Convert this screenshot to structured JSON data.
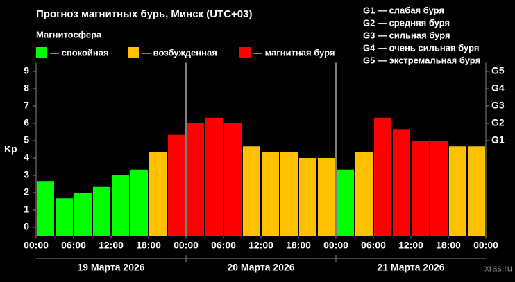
{
  "chart_data": {
    "type": "bar",
    "title": "Прогноз магнитных бурь, Минск (UTC+03)",
    "subtitle": "Магнитосфера",
    "legend": [
      {
        "name": "— спокойная",
        "color": "#00ff00"
      },
      {
        "name": "— возбужденная",
        "color": "#ffc000"
      },
      {
        "name": "— магнитная буря",
        "color": "#ff0000"
      }
    ],
    "storm_levels": [
      "G1 — слабая буря",
      "G2 — средняя буря",
      "G3 — сильная буря",
      "G4 — очень сильная буря",
      "G5 — экстремальная буря"
    ],
    "y_label": "Kp",
    "watermark": "xras.ru",
    "x": [
      0,
      3,
      6,
      9,
      12,
      15,
      18,
      21,
      24,
      27,
      30,
      33,
      36,
      39,
      42,
      45,
      48,
      51,
      54,
      57,
      60,
      63,
      66,
      69
    ],
    "values": [
      2.67,
      1.67,
      2.0,
      2.33,
      3.0,
      3.33,
      4.33,
      5.33,
      6.0,
      6.33,
      6.0,
      4.67,
      4.33,
      4.33,
      4.0,
      4.0,
      3.33,
      4.33,
      6.33,
      5.67,
      5.0,
      5.0,
      4.67,
      4.67
    ],
    "colors": [
      "#00ff00",
      "#00ff00",
      "#00ff00",
      "#00ff00",
      "#00ff00",
      "#00ff00",
      "#ffc000",
      "#ff0000",
      "#ff0000",
      "#ff0000",
      "#ff0000",
      "#ffc000",
      "#ffc000",
      "#ffc000",
      "#ffc000",
      "#ffc000",
      "#00ff00",
      "#ffc000",
      "#ff0000",
      "#ff0000",
      "#ff0000",
      "#ff0000",
      "#ffc000",
      "#ffc000"
    ],
    "xlim": [
      0,
      72
    ],
    "xticks": [
      {
        "value": 0,
        "label": "00:00"
      },
      {
        "value": 6,
        "label": "06:00"
      },
      {
        "value": 12,
        "label": "12:00"
      },
      {
        "value": 18,
        "label": "18:00"
      },
      {
        "value": 24,
        "label": "00:00"
      },
      {
        "value": 30,
        "label": "06:00"
      },
      {
        "value": 36,
        "label": "12:00"
      },
      {
        "value": 42,
        "label": "18:00"
      },
      {
        "value": 48,
        "label": "00:00"
      },
      {
        "value": 54,
        "label": "06:00"
      },
      {
        "value": 60,
        "label": "12:00"
      },
      {
        "value": 66,
        "label": "18:00"
      },
      {
        "value": 72,
        "label": "00:00"
      }
    ],
    "days": [
      "19 Марта 2026",
      "20 Марта 2026",
      "21 Марта 2026"
    ],
    "ylim": [
      -0.5,
      9.5
    ],
    "yticks": [
      0,
      1,
      2,
      3,
      4,
      5,
      6,
      7,
      8,
      9
    ],
    "y2lim": [
      -0.5,
      9.5
    ],
    "y2ticks": [
      {
        "value": 5,
        "label": "G1"
      },
      {
        "value": 6,
        "label": "G2"
      },
      {
        "value": 7,
        "label": "G3"
      },
      {
        "value": 8,
        "label": "G4"
      },
      {
        "value": 9,
        "label": "G5"
      }
    ]
  }
}
